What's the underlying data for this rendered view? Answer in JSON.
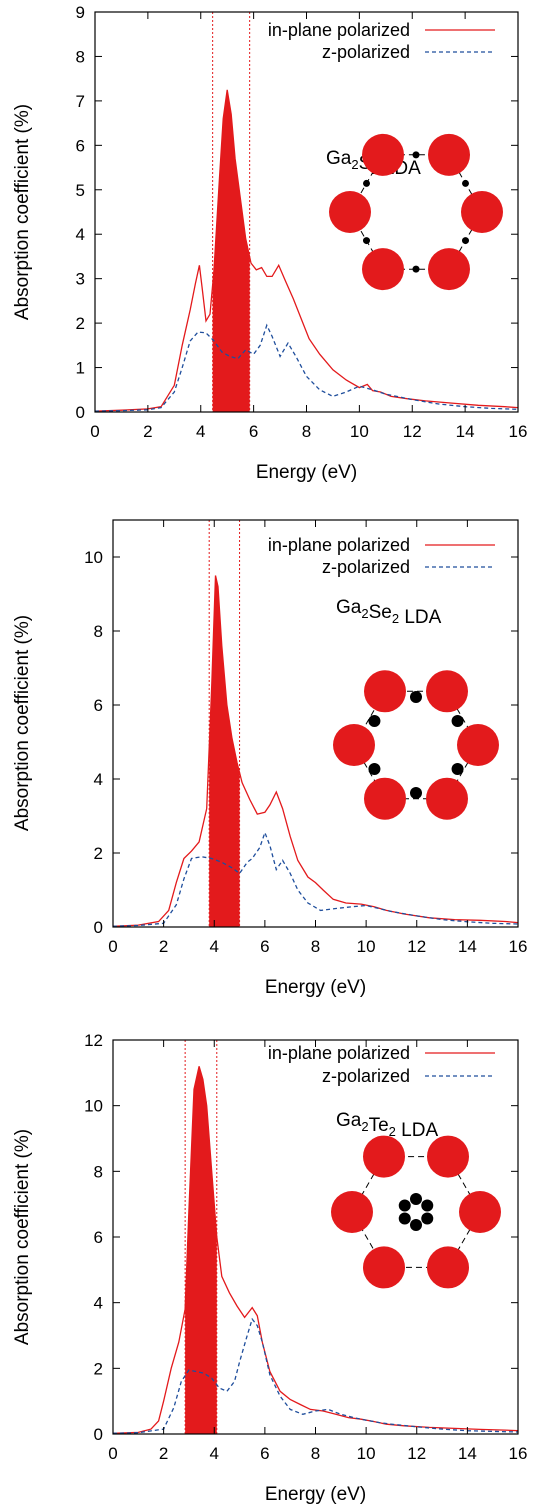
{
  "chart_data": [
    {
      "type": "line",
      "xlabel": "Energy (eV)",
      "ylabel": "Absorption coefficient (%)",
      "xlim": [
        0,
        16
      ],
      "ylim": [
        0,
        9
      ],
      "xticks": [
        0,
        2,
        4,
        6,
        8,
        10,
        12,
        14,
        16
      ],
      "yticks": [
        0,
        1,
        2,
        3,
        4,
        5,
        6,
        7,
        8,
        9
      ],
      "xtick_labels": [
        "0",
        "2",
        "4",
        "6",
        "8",
        "10",
        "12",
        "14",
        "16"
      ],
      "ytick_labels": [
        "0",
        "1",
        "2",
        "3",
        "4",
        "5",
        "6",
        "7",
        "8",
        "9"
      ],
      "vlines": [
        4.45,
        5.85
      ],
      "shaded_range": [
        4.45,
        5.85
      ],
      "inset": {
        "formula_main": "Ga",
        "formula_sub1": "2",
        "formula_mid": "S",
        "formula_sub2": "2",
        "method": " LDA",
        "center_atoms": "edge"
      },
      "series": [
        {
          "name": "in-plane polarized",
          "style": "solid",
          "color": "#e31a1c",
          "x": [
            0,
            1,
            2,
            2.5,
            3,
            3.3,
            3.6,
            3.8,
            3.95,
            4.05,
            4.2,
            4.35,
            4.5,
            4.7,
            4.85,
            5.0,
            5.15,
            5.3,
            5.5,
            5.7,
            5.9,
            6.1,
            6.3,
            6.5,
            6.7,
            6.95,
            7.2,
            7.5,
            7.8,
            8.1,
            8.5,
            9.0,
            9.5,
            10.0,
            10.3,
            10.5,
            10.8,
            11.2,
            11.8,
            12.5,
            13.5,
            14.5,
            15.5,
            16
          ],
          "values": [
            0.02,
            0.04,
            0.07,
            0.12,
            0.6,
            1.5,
            2.3,
            2.9,
            3.3,
            2.8,
            2.05,
            2.2,
            3.2,
            5.2,
            6.6,
            7.25,
            6.7,
            5.7,
            4.8,
            3.9,
            3.35,
            3.2,
            3.25,
            3.05,
            3.05,
            3.3,
            2.95,
            2.55,
            2.1,
            1.65,
            1.3,
            0.95,
            0.72,
            0.55,
            0.62,
            0.48,
            0.45,
            0.35,
            0.3,
            0.25,
            0.2,
            0.15,
            0.12,
            0.1
          ]
        },
        {
          "name": "z-polarized",
          "style": "dashed",
          "color": "#1f4e9c",
          "x": [
            0,
            1,
            2,
            2.5,
            3,
            3.3,
            3.6,
            3.9,
            4.2,
            4.5,
            4.8,
            5.1,
            5.4,
            5.7,
            6.0,
            6.25,
            6.5,
            6.7,
            7.0,
            7.3,
            7.6,
            8.0,
            8.5,
            9.0,
            9.5,
            10.0,
            10.5,
            11.0,
            12.0,
            13.0,
            14.0,
            15.0,
            16
          ],
          "values": [
            0.02,
            0.03,
            0.05,
            0.1,
            0.45,
            1.0,
            1.6,
            1.8,
            1.78,
            1.6,
            1.35,
            1.25,
            1.2,
            1.4,
            1.3,
            1.5,
            1.95,
            1.7,
            1.25,
            1.55,
            1.25,
            0.8,
            0.5,
            0.35,
            0.45,
            0.58,
            0.5,
            0.4,
            0.28,
            0.18,
            0.12,
            0.08,
            0.06
          ]
        }
      ]
    },
    {
      "type": "line",
      "xlabel": "Energy (eV)",
      "ylabel": "Absorption coefficient (%)",
      "xlim": [
        0,
        16
      ],
      "ylim": [
        0,
        11
      ],
      "xticks": [
        0,
        2,
        4,
        6,
        8,
        10,
        12,
        14,
        16
      ],
      "yticks": [
        0,
        2,
        4,
        6,
        8,
        10
      ],
      "xtick_labels": [
        "0",
        "2",
        "4",
        "6",
        "8",
        "10",
        "12",
        "14",
        "16"
      ],
      "ytick_labels": [
        "0",
        "2",
        "4",
        "6",
        "8",
        "10"
      ],
      "vlines": [
        3.8,
        5.0
      ],
      "shaded_range": [
        3.8,
        5.0
      ],
      "inset": {
        "formula_main": "Ga",
        "formula_sub1": "2",
        "formula_mid": "Se",
        "formula_sub2": "2",
        "method": " LDA",
        "center_atoms": "inner"
      },
      "series": [
        {
          "name": "in-plane polarized",
          "style": "solid",
          "color": "#e31a1c",
          "x": [
            0,
            1,
            1.8,
            2.2,
            2.5,
            2.8,
            3.1,
            3.4,
            3.7,
            3.9,
            4.05,
            4.15,
            4.3,
            4.5,
            4.7,
            4.9,
            5.1,
            5.4,
            5.7,
            6.0,
            6.2,
            6.45,
            6.7,
            7.0,
            7.3,
            7.7,
            8.0,
            8.3,
            8.7,
            9.2,
            9.8,
            10.3,
            10.8,
            11.5,
            12.5,
            13.5,
            14.5,
            15.5,
            16
          ],
          "values": [
            0.02,
            0.05,
            0.15,
            0.45,
            1.2,
            1.85,
            2.05,
            2.3,
            3.2,
            6.5,
            9.5,
            9.2,
            7.6,
            6.0,
            5.1,
            4.45,
            3.9,
            3.45,
            3.05,
            3.1,
            3.3,
            3.65,
            3.2,
            2.45,
            1.8,
            1.35,
            1.2,
            1.0,
            0.75,
            0.65,
            0.62,
            0.55,
            0.45,
            0.35,
            0.25,
            0.2,
            0.18,
            0.15,
            0.12
          ]
        },
        {
          "name": "z-polarized",
          "style": "dashed",
          "color": "#1f4e9c",
          "x": [
            0,
            1,
            2,
            2.5,
            2.8,
            3.1,
            3.5,
            3.9,
            4.3,
            4.7,
            5.0,
            5.3,
            5.5,
            5.8,
            6.0,
            6.2,
            6.45,
            6.7,
            7.0,
            7.3,
            7.7,
            8.2,
            8.8,
            9.5,
            10.0,
            10.5,
            11.0,
            12.0,
            13.0,
            14.0,
            15.0,
            16
          ],
          "values": [
            0.02,
            0.04,
            0.1,
            0.6,
            1.3,
            1.85,
            1.9,
            1.85,
            1.75,
            1.6,
            1.45,
            1.75,
            1.85,
            2.15,
            2.55,
            2.2,
            1.55,
            1.8,
            1.45,
            1.0,
            0.65,
            0.45,
            0.5,
            0.55,
            0.58,
            0.5,
            0.42,
            0.3,
            0.2,
            0.14,
            0.1,
            0.08
          ]
        }
      ]
    },
    {
      "type": "line",
      "xlabel": "Energy (eV)",
      "ylabel": "Absorption coefficient (%)",
      "xlim": [
        0,
        16
      ],
      "ylim": [
        0,
        12
      ],
      "xticks": [
        0,
        2,
        4,
        6,
        8,
        10,
        12,
        14,
        16
      ],
      "yticks": [
        0,
        2,
        4,
        6,
        8,
        10,
        12
      ],
      "xtick_labels": [
        "0",
        "2",
        "4",
        "6",
        "8",
        "10",
        "12",
        "14",
        "16"
      ],
      "ytick_labels": [
        "0",
        "2",
        "4",
        "6",
        "8",
        "10",
        "12"
      ],
      "vlines": [
        2.85,
        4.1
      ],
      "shaded_range": [
        2.85,
        4.1
      ],
      "inset": {
        "formula_main": "Ga",
        "formula_sub1": "2",
        "formula_mid": "Te",
        "formula_sub2": "2",
        "method": " LDA",
        "center_atoms": "cluster"
      },
      "series": [
        {
          "name": "in-plane polarized",
          "style": "solid",
          "color": "#e31a1c",
          "x": [
            0,
            1,
            1.5,
            1.8,
            2.0,
            2.3,
            2.6,
            2.85,
            3.0,
            3.2,
            3.4,
            3.55,
            3.7,
            3.9,
            4.1,
            4.3,
            4.6,
            4.9,
            5.2,
            5.5,
            5.7,
            5.9,
            6.2,
            6.6,
            7.0,
            7.4,
            7.8,
            8.3,
            8.8,
            9.3,
            9.8,
            10.3,
            10.8,
            11.5,
            12.5,
            13.5,
            14.5,
            15.5,
            16
          ],
          "values": [
            0.02,
            0.05,
            0.15,
            0.4,
            1.0,
            2.0,
            2.8,
            3.8,
            6.8,
            10.5,
            11.2,
            10.8,
            10.0,
            8.0,
            6.0,
            4.8,
            4.3,
            3.9,
            3.55,
            3.85,
            3.6,
            2.8,
            1.9,
            1.3,
            1.05,
            0.9,
            0.75,
            0.7,
            0.6,
            0.5,
            0.45,
            0.38,
            0.3,
            0.25,
            0.2,
            0.17,
            0.14,
            0.12,
            0.1
          ]
        },
        {
          "name": "z-polarized",
          "style": "dashed",
          "color": "#1f4e9c",
          "x": [
            0,
            1,
            2,
            2.4,
            2.7,
            3.0,
            3.3,
            3.6,
            3.9,
            4.2,
            4.5,
            4.8,
            5.0,
            5.3,
            5.5,
            5.7,
            5.9,
            6.2,
            6.6,
            7.0,
            7.5,
            8.0,
            8.5,
            9.0,
            9.5,
            10.0,
            10.5,
            11.0,
            12.0,
            13.0,
            14.0,
            15.0,
            16
          ],
          "values": [
            0.02,
            0.04,
            0.15,
            0.8,
            1.6,
            1.95,
            1.9,
            1.85,
            1.7,
            1.4,
            1.3,
            1.6,
            2.2,
            3.0,
            3.5,
            3.3,
            2.8,
            1.8,
            1.15,
            0.75,
            0.6,
            0.7,
            0.75,
            0.6,
            0.5,
            0.42,
            0.35,
            0.3,
            0.22,
            0.15,
            0.1,
            0.08,
            0.06
          ]
        }
      ]
    }
  ]
}
